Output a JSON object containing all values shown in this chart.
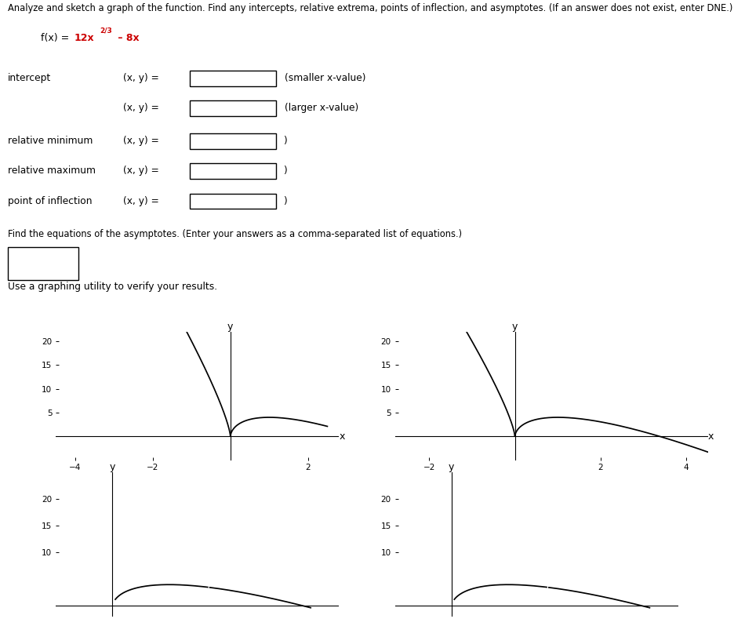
{
  "title_text": "Analyze and sketch a graph of the function. Find any intercepts, relative extrema, points of inflection, and asymptotes. (If an answer does not exist, enter DNE.)",
  "function_prefix": "f(x) = ",
  "function_red": "12x",
  "function_sup": "2/3",
  "function_red2": " – 8x",
  "background_color": "#ffffff",
  "plot_line_color": "#000000",
  "axis_color": "#000000",
  "text_color": "#000000",
  "label_color": "#cc0000",
  "g1": {
    "xlim": [
      -4.5,
      2.8
    ],
    "ylim": [
      -5,
      22
    ],
    "xticks": [
      -4,
      -2,
      2
    ],
    "yticks": [
      5,
      10,
      15,
      20
    ]
  },
  "g2": {
    "xlim": [
      -2.8,
      4.5
    ],
    "ylim": [
      -5,
      22
    ],
    "xticks": [
      -2,
      2,
      4
    ],
    "yticks": [
      5,
      10,
      15,
      20
    ]
  },
  "g3": {
    "xlim": [
      -1.0,
      4.0
    ],
    "ylim": [
      -2,
      25
    ],
    "xticks": [],
    "yticks": [
      10,
      15,
      20
    ]
  },
  "g4": {
    "xlim": [
      -1.0,
      4.0
    ],
    "ylim": [
      -2,
      25
    ],
    "xticks": [],
    "yticks": [
      10,
      15,
      20
    ]
  },
  "asymptote_label": "Find the equations of the asymptotes. (Enter your answers as a comma-separated list of equations.)",
  "verify_label": "Use a graphing utility to verify your results."
}
